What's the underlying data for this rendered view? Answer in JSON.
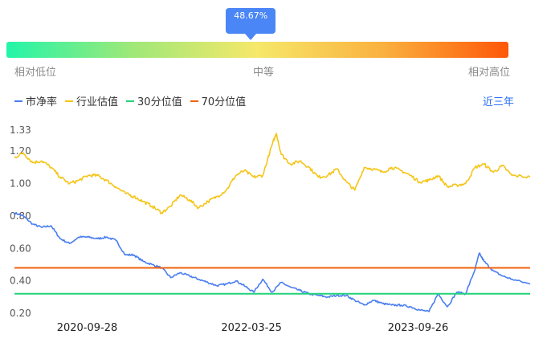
{
  "gauge": {
    "percentile_label": "48.67%",
    "percentile": 0.4867,
    "low_label": "相对低位",
    "mid_label": "中等",
    "high_label": "相对高位",
    "gradient_colors": [
      "#23f5a9",
      "#9fe878",
      "#f6e86a",
      "#fab13e",
      "#fe5708"
    ]
  },
  "period_selector": {
    "label": "近三年"
  },
  "chart_data": {
    "type": "line",
    "title": "",
    "xlabel": "",
    "ylabel": "",
    "x_ticks": [
      "2020-09-28",
      "2022-03-25",
      "2023-09-26"
    ],
    "y_ticks": [
      0.2,
      0.4,
      0.6,
      0.8,
      1.0,
      1.2,
      1.33
    ],
    "ylim": [
      0.2,
      1.33
    ],
    "grid": false,
    "legend_position": "top-left",
    "x_range": [
      "2020-02-01",
      "2024-09-30"
    ],
    "series": [
      {
        "name": "市净率",
        "color": "#4a7ef0",
        "points": [
          [
            "2020-02-01",
            0.82
          ],
          [
            "2020-03-01",
            0.8
          ],
          [
            "2020-04-01",
            0.75
          ],
          [
            "2020-05-01",
            0.73
          ],
          [
            "2020-06-01",
            0.74
          ],
          [
            "2020-07-01",
            0.66
          ],
          [
            "2020-08-01",
            0.63
          ],
          [
            "2020-09-01",
            0.67
          ],
          [
            "2020-10-01",
            0.67
          ],
          [
            "2020-11-01",
            0.66
          ],
          [
            "2020-12-01",
            0.67
          ],
          [
            "2021-01-01",
            0.65
          ],
          [
            "2021-02-01",
            0.56
          ],
          [
            "2021-03-01",
            0.56
          ],
          [
            "2021-04-01",
            0.52
          ],
          [
            "2021-05-01",
            0.5
          ],
          [
            "2021-06-01",
            0.48
          ],
          [
            "2021-07-01",
            0.42
          ],
          [
            "2021-08-01",
            0.45
          ],
          [
            "2021-09-01",
            0.43
          ],
          [
            "2021-10-01",
            0.41
          ],
          [
            "2021-11-01",
            0.39
          ],
          [
            "2021-12-01",
            0.37
          ],
          [
            "2022-01-01",
            0.38
          ],
          [
            "2022-02-01",
            0.4
          ],
          [
            "2022-03-01",
            0.37
          ],
          [
            "2022-04-01",
            0.33
          ],
          [
            "2022-05-01",
            0.41
          ],
          [
            "2022-06-01",
            0.33
          ],
          [
            "2022-07-01",
            0.39
          ],
          [
            "2022-08-01",
            0.36
          ],
          [
            "2022-09-01",
            0.34
          ],
          [
            "2022-10-01",
            0.32
          ],
          [
            "2022-11-01",
            0.31
          ],
          [
            "2022-12-01",
            0.3
          ],
          [
            "2023-01-01",
            0.31
          ],
          [
            "2023-02-01",
            0.31
          ],
          [
            "2023-03-01",
            0.28
          ],
          [
            "2023-04-01",
            0.25
          ],
          [
            "2023-05-01",
            0.28
          ],
          [
            "2023-06-01",
            0.26
          ],
          [
            "2023-07-01",
            0.25
          ],
          [
            "2023-08-01",
            0.25
          ],
          [
            "2023-09-01",
            0.24
          ],
          [
            "2023-10-01",
            0.22
          ],
          [
            "2023-11-01",
            0.21
          ],
          [
            "2023-12-01",
            0.32
          ],
          [
            "2024-01-01",
            0.24
          ],
          [
            "2024-02-01",
            0.33
          ],
          [
            "2024-03-01",
            0.32
          ],
          [
            "2024-04-01",
            0.47
          ],
          [
            "2024-04-15",
            0.57
          ],
          [
            "2024-05-01",
            0.52
          ],
          [
            "2024-06-01",
            0.46
          ],
          [
            "2024-07-01",
            0.43
          ],
          [
            "2024-08-01",
            0.41
          ],
          [
            "2024-09-30",
            0.38
          ]
        ]
      },
      {
        "name": "行业估值",
        "color": "#f5c518",
        "points": [
          [
            "2020-02-01",
            1.16
          ],
          [
            "2020-03-01",
            1.19
          ],
          [
            "2020-04-01",
            1.13
          ],
          [
            "2020-05-01",
            1.14
          ],
          [
            "2020-06-01",
            1.1
          ],
          [
            "2020-07-01",
            1.04
          ],
          [
            "2020-08-01",
            1.0
          ],
          [
            "2020-09-01",
            1.02
          ],
          [
            "2020-10-01",
            1.05
          ],
          [
            "2020-11-01",
            1.05
          ],
          [
            "2020-12-01",
            1.02
          ],
          [
            "2021-01-01",
            0.98
          ],
          [
            "2021-02-01",
            0.94
          ],
          [
            "2021-03-01",
            0.92
          ],
          [
            "2021-04-01",
            0.89
          ],
          [
            "2021-05-01",
            0.86
          ],
          [
            "2021-06-01",
            0.82
          ],
          [
            "2021-07-01",
            0.86
          ],
          [
            "2021-08-01",
            0.93
          ],
          [
            "2021-09-01",
            0.9
          ],
          [
            "2021-10-01",
            0.85
          ],
          [
            "2021-11-01",
            0.89
          ],
          [
            "2021-12-01",
            0.92
          ],
          [
            "2022-01-01",
            0.96
          ],
          [
            "2022-02-01",
            1.05
          ],
          [
            "2022-03-01",
            1.08
          ],
          [
            "2022-04-01",
            1.04
          ],
          [
            "2022-05-01",
            1.05
          ],
          [
            "2022-06-01",
            1.24
          ],
          [
            "2022-06-15",
            1.31
          ],
          [
            "2022-07-01",
            1.18
          ],
          [
            "2022-08-01",
            1.12
          ],
          [
            "2022-09-01",
            1.14
          ],
          [
            "2022-10-01",
            1.1
          ],
          [
            "2022-11-01",
            1.04
          ],
          [
            "2022-12-01",
            1.05
          ],
          [
            "2023-01-01",
            1.09
          ],
          [
            "2023-02-01",
            1.01
          ],
          [
            "2023-03-01",
            0.96
          ],
          [
            "2023-04-01",
            1.1
          ],
          [
            "2023-05-01",
            1.09
          ],
          [
            "2023-06-01",
            1.07
          ],
          [
            "2023-07-01",
            1.1
          ],
          [
            "2023-08-01",
            1.08
          ],
          [
            "2023-09-01",
            1.05
          ],
          [
            "2023-10-01",
            1.01
          ],
          [
            "2023-11-01",
            1.02
          ],
          [
            "2023-12-01",
            1.05
          ],
          [
            "2024-01-01",
            0.98
          ],
          [
            "2024-02-01",
            0.99
          ],
          [
            "2024-03-01",
            1.0
          ],
          [
            "2024-04-01",
            1.1
          ],
          [
            "2024-05-01",
            1.12
          ],
          [
            "2024-06-01",
            1.07
          ],
          [
            "2024-07-01",
            1.11
          ],
          [
            "2024-08-01",
            1.05
          ],
          [
            "2024-09-30",
            1.04
          ]
        ]
      },
      {
        "name": "30分位值",
        "color": "#22d37a",
        "value": 0.32
      },
      {
        "name": "70分位值",
        "color": "#f0620e",
        "value": 0.48
      }
    ]
  }
}
